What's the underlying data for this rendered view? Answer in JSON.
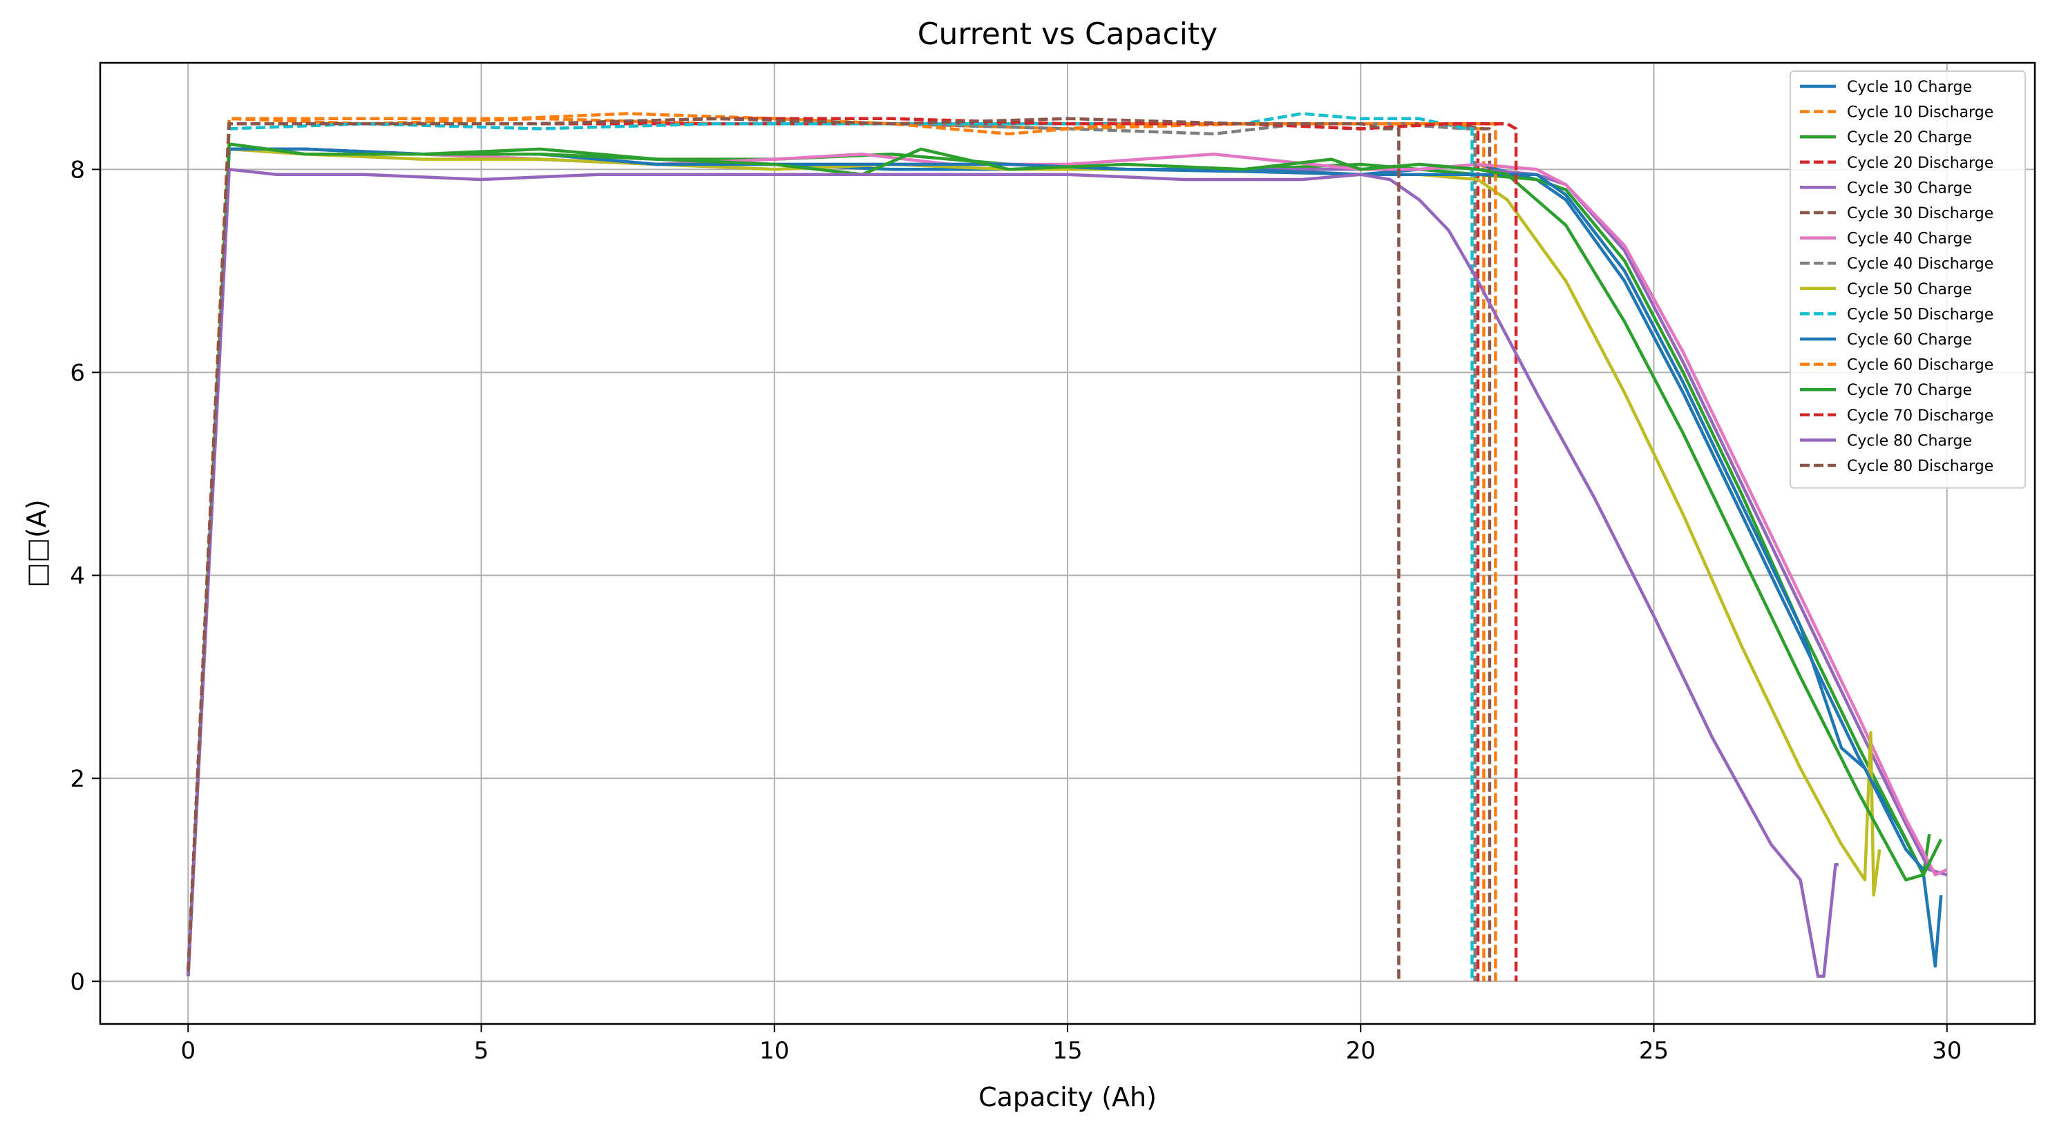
{
  "chart_data": {
    "type": "line",
    "title": "Current vs Capacity",
    "xlabel": "Capacity (Ah)",
    "ylabel": "□□(A)",
    "xlim": [
      -1.5,
      31.5
    ],
    "ylim": [
      -0.42,
      9.05
    ],
    "xticks": [
      0,
      5,
      10,
      15,
      20,
      25,
      30
    ],
    "yticks": [
      0,
      2,
      4,
      6,
      8
    ],
    "grid": true,
    "legend_position": "top-right",
    "series": [
      {
        "name": "Cycle 10 Charge",
        "color": "#1f77b4",
        "dash": "solid",
        "x": [
          0,
          0.7,
          2,
          4,
          6,
          8,
          10,
          12,
          14,
          16,
          18,
          20,
          21,
          22,
          23,
          23.5,
          24.5,
          25.5,
          26.5,
          27.5,
          28.5,
          29.2,
          29.6,
          29.8,
          29.9
        ],
        "y": [
          0.05,
          8.2,
          8.2,
          8.15,
          8.1,
          8.05,
          8.05,
          8.0,
          8.0,
          8.0,
          7.98,
          7.95,
          8.0,
          8.05,
          7.9,
          7.7,
          6.9,
          5.8,
          4.6,
          3.4,
          2.2,
          1.5,
          1.05,
          0.15,
          0.85
        ]
      },
      {
        "name": "Cycle 10 Discharge",
        "color": "#ff7f0e",
        "dash": "dashed",
        "x": [
          0,
          0.7,
          3,
          6,
          9,
          12,
          15,
          18,
          20,
          21.5,
          22.0,
          22.1,
          22.1
        ],
        "y": [
          0.1,
          8.5,
          8.45,
          8.5,
          8.45,
          8.45,
          8.4,
          8.45,
          8.45,
          8.45,
          8.4,
          8.4,
          0
        ]
      },
      {
        "name": "Cycle 20 Charge",
        "color": "#2ca02c",
        "dash": "solid",
        "x": [
          0,
          0.7,
          2,
          4,
          6,
          8,
          10,
          12,
          14,
          16,
          18,
          20,
          21,
          22,
          23,
          23.5,
          24.5,
          25.5,
          26.5,
          27.5,
          28.5,
          29.3,
          29.6,
          29.7
        ],
        "y": [
          0.05,
          8.25,
          8.15,
          8.15,
          8.2,
          8.1,
          8.1,
          8.15,
          8.05,
          8.0,
          8.0,
          8.05,
          8.0,
          7.95,
          7.9,
          7.8,
          7.1,
          6.0,
          4.8,
          3.5,
          2.3,
          1.4,
          1.05,
          1.45
        ]
      },
      {
        "name": "Cycle 20 Discharge",
        "color": "#d62728",
        "dash": "dashed",
        "x": [
          0,
          0.7,
          3,
          6,
          9,
          12,
          15,
          18,
          20,
          21.5,
          22.0,
          22.0
        ],
        "y": [
          0.1,
          8.45,
          8.45,
          8.45,
          8.45,
          8.45,
          8.45,
          8.45,
          8.4,
          8.45,
          8.4,
          0
        ]
      },
      {
        "name": "Cycle 30 Charge",
        "color": "#9467bd",
        "dash": "solid",
        "x": [
          0,
          0.7,
          2,
          4,
          6,
          8,
          10,
          12,
          14,
          16,
          18,
          20,
          21,
          22,
          23,
          23.5,
          24.5,
          25.5,
          26.5,
          27.5,
          28.5,
          29.3,
          29.7,
          30.0
        ],
        "y": [
          0.05,
          8.2,
          8.2,
          8.15,
          8.15,
          8.1,
          8.05,
          8.05,
          8.05,
          8.0,
          8.0,
          8.0,
          8.05,
          8.0,
          7.95,
          7.85,
          7.2,
          6.1,
          4.9,
          3.7,
          2.5,
          1.55,
          1.1,
          1.05
        ]
      },
      {
        "name": "Cycle 30 Discharge",
        "color": "#8c564b",
        "dash": "dashed",
        "x": [
          0,
          0.7,
          3,
          6,
          9,
          12,
          15,
          18,
          20,
          21.5,
          22.1,
          22.2,
          22.2
        ],
        "y": [
          0.1,
          8.45,
          8.45,
          8.45,
          8.5,
          8.45,
          8.45,
          8.45,
          8.45,
          8.45,
          8.4,
          8.4,
          0
        ]
      },
      {
        "name": "Cycle 40 Charge",
        "color": "#e377c2",
        "dash": "solid",
        "x": [
          0,
          0.7,
          2,
          4,
          6,
          8,
          10,
          11.5,
          13,
          15,
          17.5,
          20,
          21,
          22,
          23,
          23.5,
          24.5,
          25.5,
          26.5,
          27.5,
          28.5,
          29.3,
          29.8,
          30.0
        ],
        "y": [
          0.05,
          8.2,
          8.15,
          8.15,
          8.1,
          8.05,
          8.1,
          8.15,
          8.05,
          8.05,
          8.15,
          8.0,
          8.0,
          8.05,
          8.0,
          7.85,
          7.25,
          6.2,
          5.0,
          3.8,
          2.6,
          1.6,
          1.05,
          1.1
        ]
      },
      {
        "name": "Cycle 40 Discharge",
        "color": "#7f7f7f",
        "dash": "dashed",
        "x": [
          0,
          0.7,
          3,
          6,
          9,
          12,
          15,
          17.5,
          19,
          20.5,
          21.8,
          21.95,
          21.95
        ],
        "y": [
          0.1,
          8.45,
          8.45,
          8.45,
          8.5,
          8.45,
          8.4,
          8.35,
          8.45,
          8.45,
          8.4,
          8.4,
          0
        ]
      },
      {
        "name": "Cycle 50 Charge",
        "color": "#bcbd22",
        "dash": "solid",
        "x": [
          0,
          0.7,
          2,
          4,
          6,
          8,
          10,
          12,
          14,
          16,
          18,
          20,
          21,
          22,
          22.5,
          23.5,
          24.5,
          25.5,
          26.5,
          27.5,
          28.2,
          28.6,
          28.7,
          28.75,
          28.85
        ],
        "y": [
          0.05,
          8.2,
          8.15,
          8.1,
          8.1,
          8.05,
          8.0,
          8.05,
          8.0,
          8.0,
          8.0,
          7.95,
          7.95,
          7.9,
          7.7,
          6.9,
          5.8,
          4.6,
          3.3,
          2.1,
          1.35,
          1.0,
          2.45,
          0.85,
          1.3
        ]
      },
      {
        "name": "Cycle 50 Discharge",
        "color": "#17becf",
        "dash": "dashed",
        "x": [
          0,
          0.7,
          3,
          6,
          9,
          12,
          15,
          18,
          19,
          20,
          21,
          21.8,
          21.9,
          21.9
        ],
        "y": [
          0.1,
          8.4,
          8.45,
          8.4,
          8.45,
          8.45,
          8.45,
          8.45,
          8.55,
          8.5,
          8.5,
          8.4,
          8.4,
          0
        ]
      },
      {
        "name": "Cycle 60 Charge",
        "color": "#1f77b4",
        "dash": "solid",
        "x": [
          0,
          0.7,
          2,
          4,
          6,
          8,
          10,
          12,
          14,
          16,
          18,
          20,
          21,
          22,
          23,
          23.5,
          24.5,
          25.5,
          26.5,
          27.5,
          28.2,
          28.6,
          29.3,
          29.6
        ],
        "y": [
          0.05,
          8.2,
          8.2,
          8.15,
          8.15,
          8.05,
          8.05,
          8.05,
          8.05,
          8.0,
          8.0,
          7.95,
          7.95,
          7.95,
          7.95,
          7.75,
          7.0,
          5.9,
          4.7,
          3.5,
          2.3,
          2.1,
          1.3,
          1.1
        ]
      },
      {
        "name": "Cycle 60 Discharge",
        "color": "#ff7f0e",
        "dash": "dashed",
        "x": [
          0,
          0.7,
          3,
          5.5,
          7.5,
          10,
          12,
          14,
          16,
          18,
          20,
          21.5,
          22.2,
          22.3,
          22.3
        ],
        "y": [
          0.1,
          8.5,
          8.5,
          8.5,
          8.55,
          8.5,
          8.45,
          8.35,
          8.45,
          8.45,
          8.45,
          8.45,
          8.45,
          8.45,
          0
        ]
      },
      {
        "name": "Cycle 70 Charge",
        "color": "#2ca02c",
        "dash": "solid",
        "x": [
          0,
          0.7,
          2,
          4,
          6,
          8,
          10,
          11.5,
          12.5,
          14,
          16,
          18,
          19.5,
          20,
          21,
          22,
          22.5,
          23.5,
          24.5,
          25.5,
          26.5,
          27.5,
          28.5,
          29.3,
          29.6,
          29.9
        ],
        "y": [
          0.05,
          8.25,
          8.15,
          8.15,
          8.15,
          8.1,
          8.05,
          7.95,
          8.2,
          8.0,
          8.05,
          8.0,
          8.1,
          8.0,
          8.05,
          8.0,
          7.95,
          7.45,
          6.5,
          5.4,
          4.2,
          3.0,
          1.85,
          1.0,
          1.05,
          1.4
        ]
      },
      {
        "name": "Cycle 70 Discharge",
        "color": "#d62728",
        "dash": "dashed",
        "x": [
          0,
          0.7,
          3,
          6,
          9,
          12,
          15,
          18,
          20,
          21.5,
          22.5,
          22.65,
          22.65
        ],
        "y": [
          0.1,
          8.45,
          8.45,
          8.45,
          8.5,
          8.5,
          8.45,
          8.45,
          8.4,
          8.45,
          8.45,
          8.4,
          0
        ]
      },
      {
        "name": "Cycle 80 Charge",
        "color": "#9467bd",
        "dash": "solid",
        "x": [
          0,
          0.7,
          1.5,
          3,
          5,
          7,
          9,
          11,
          13,
          15,
          17,
          19,
          20,
          20.5,
          21,
          21.5,
          22,
          23,
          24,
          25,
          26,
          27,
          27.5,
          27.8,
          27.9,
          28.1,
          28.15
        ],
        "y": [
          0.05,
          8.0,
          7.95,
          7.95,
          7.9,
          7.95,
          7.95,
          7.95,
          7.95,
          7.95,
          7.9,
          7.9,
          7.95,
          7.9,
          7.7,
          7.4,
          6.9,
          5.8,
          4.75,
          3.6,
          2.4,
          1.35,
          1.0,
          0.05,
          0.05,
          1.15,
          1.15
        ]
      },
      {
        "name": "Cycle 80 Discharge",
        "color": "#8c564b",
        "dash": "dashed",
        "x": [
          0,
          0.7,
          3,
          6,
          9,
          12,
          15,
          18,
          20,
          20.4,
          20.5,
          20.6,
          20.65,
          20.65
        ],
        "y": [
          0.1,
          8.45,
          8.45,
          8.45,
          8.5,
          8.45,
          8.5,
          8.45,
          8.45,
          8.4,
          8.4,
          8.4,
          8.4,
          0
        ]
      }
    ]
  }
}
